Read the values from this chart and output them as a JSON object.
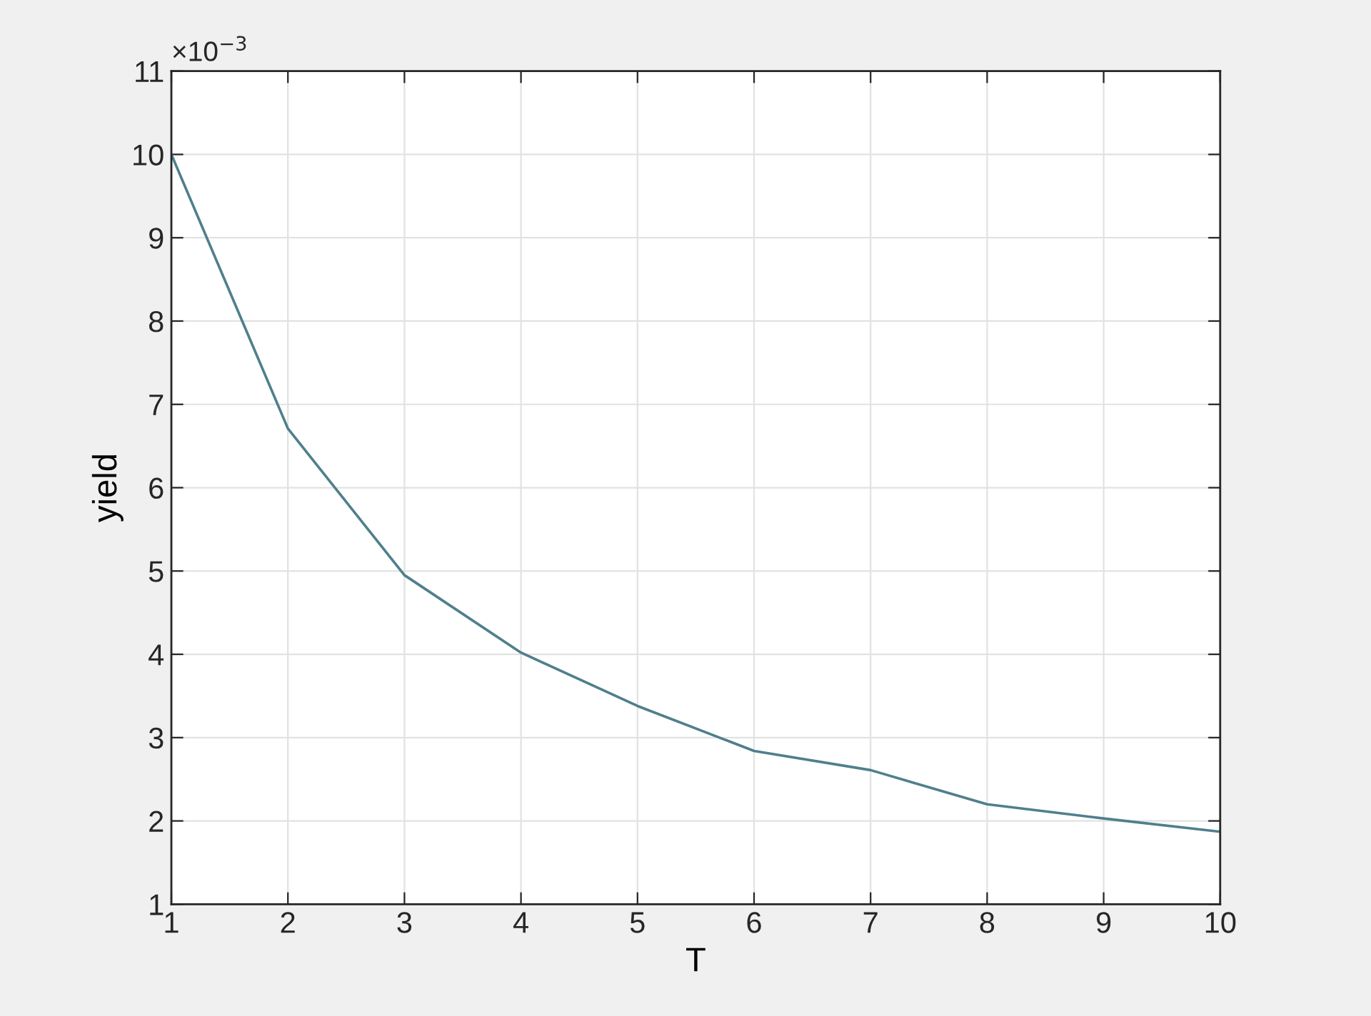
{
  "chart_data": {
    "type": "line",
    "xlabel": "T",
    "ylabel": "yield",
    "x": [
      1,
      2,
      3,
      4,
      5,
      6,
      7,
      8,
      9,
      10
    ],
    "series": [
      {
        "color": "#4f7f8c",
        "values": [
          10.0,
          6.71,
          4.95,
          4.02,
          3.38,
          2.84,
          2.61,
          2.2,
          2.03,
          1.87
        ]
      }
    ],
    "xlim": [
      1,
      10
    ],
    "xticks": [
      1,
      2,
      3,
      4,
      5,
      6,
      7,
      8,
      9,
      10
    ],
    "ylim": [
      1,
      11
    ],
    "yticks": [
      1,
      2,
      3,
      4,
      5,
      6,
      7,
      8,
      9,
      10,
      11
    ],
    "grid": true,
    "marker": "none",
    "line_style": "solid",
    "annotations": [
      "×10$^{−3}$"
    ]
  }
}
